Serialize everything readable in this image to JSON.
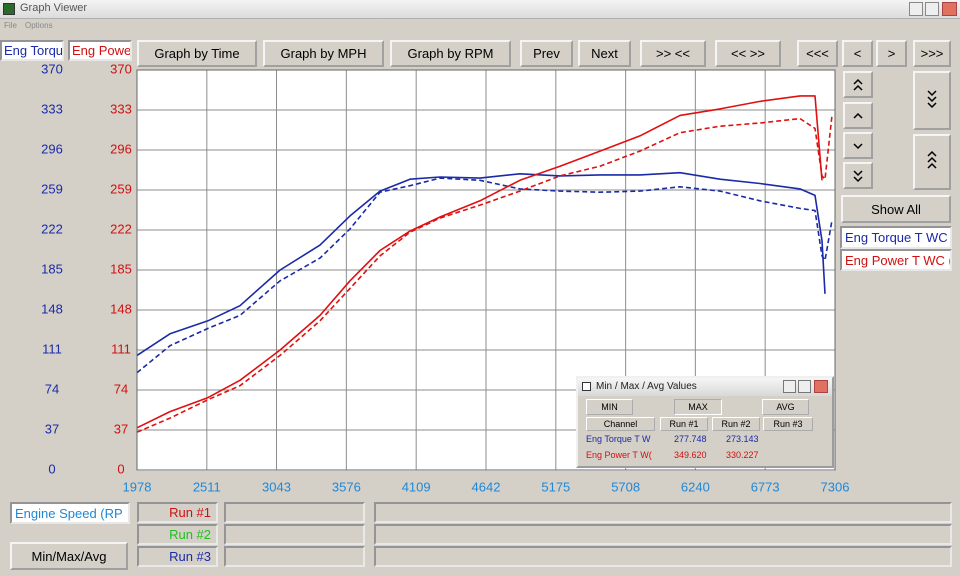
{
  "window": {
    "title": "Graph Viewer",
    "menu": [
      "File",
      "Options"
    ]
  },
  "toolbar": [
    "Graph by Time",
    "Graph by MPH",
    "Graph by RPM",
    "Prev",
    "Next",
    ">> <<",
    "<< >>",
    "<<<",
    "<",
    ">",
    ">>>"
  ],
  "side_panel": {
    "show_all": "Show All",
    "channels": [
      "Eng Torque T WC",
      "Eng Power T WC ("
    ]
  },
  "chart_data": {
    "type": "line",
    "y_label": "Eng Torqu",
    "y2_label": "Eng Powe",
    "x_label": "Engine Speed (RP",
    "x": [
      1978,
      2230,
      2520,
      2764,
      3070,
      3375,
      3604,
      3833,
      4062,
      4291,
      4596,
      4901,
      5207,
      5512,
      5817,
      6123,
      6428,
      6733,
      7039,
      7153,
      7207,
      7230,
      7283
    ],
    "series": [
      {
        "color": "#1a2aa8",
        "dash": false,
        "axis": "y",
        "values": [
          106,
          126,
          138,
          152,
          185,
          208,
          235,
          258,
          269,
          271,
          270,
          274,
          272,
          273,
          273,
          275,
          269,
          265,
          260,
          254,
          212,
          163,
          null
        ]
      },
      {
        "color": "#1a2aa8",
        "dash": true,
        "axis": "y",
        "values": [
          90,
          115,
          131,
          143,
          175,
          196,
          223,
          257,
          263,
          270,
          268,
          260,
          258,
          257,
          258,
          262,
          258,
          249,
          242,
          240,
          198,
          194,
          231
        ]
      },
      {
        "color": "#e01010",
        "dash": false,
        "axis": "y2",
        "values": [
          39,
          54,
          67,
          83,
          111,
          143,
          175,
          203,
          221,
          234,
          249,
          268,
          281,
          295,
          309,
          328,
          334,
          341,
          346,
          346,
          268,
          null,
          null
        ]
      },
      {
        "color": "#e01010",
        "dash": true,
        "axis": "y2",
        "values": [
          35,
          48,
          65,
          78,
          106,
          138,
          168,
          198,
          220,
          233,
          245,
          258,
          272,
          281,
          295,
          312,
          318,
          321,
          325,
          316,
          272,
          269,
          328
        ]
      }
    ],
    "xlim": [
      1978,
      7306
    ],
    "xticks": [
      1978,
      2511,
      3043,
      3576,
      4109,
      4642,
      5175,
      5708,
      6240,
      6773,
      7306
    ],
    "ylim": [
      0,
      370
    ],
    "yticks": [
      0,
      37,
      74,
      111,
      148,
      185,
      222,
      259,
      296,
      333,
      370
    ],
    "y2lim": [
      0,
      370
    ],
    "y2ticks": [
      0,
      37,
      74,
      111,
      148,
      185,
      222,
      259,
      296,
      333,
      370
    ],
    "grid": true,
    "y_color": "#1a2aa8",
    "y2_color": "#d01010",
    "x_tick_color": "#1e88d8"
  },
  "bottom_panel": {
    "button": "Min/Max/Avg",
    "runs": [
      "Run #1",
      "Run #2",
      "Run #3"
    ]
  },
  "minmax_dialog": {
    "title": "Min / Max / Avg Values",
    "buttons": [
      "MIN",
      "MAX",
      "AVG"
    ],
    "columns": [
      "Channel",
      "Run #1",
      "Run #2",
      "Run #3"
    ],
    "rows": [
      [
        "Eng Torque T W",
        "277.748",
        "273.143"
      ],
      [
        "Eng Power T W(",
        "349.620",
        "330.227"
      ]
    ]
  }
}
